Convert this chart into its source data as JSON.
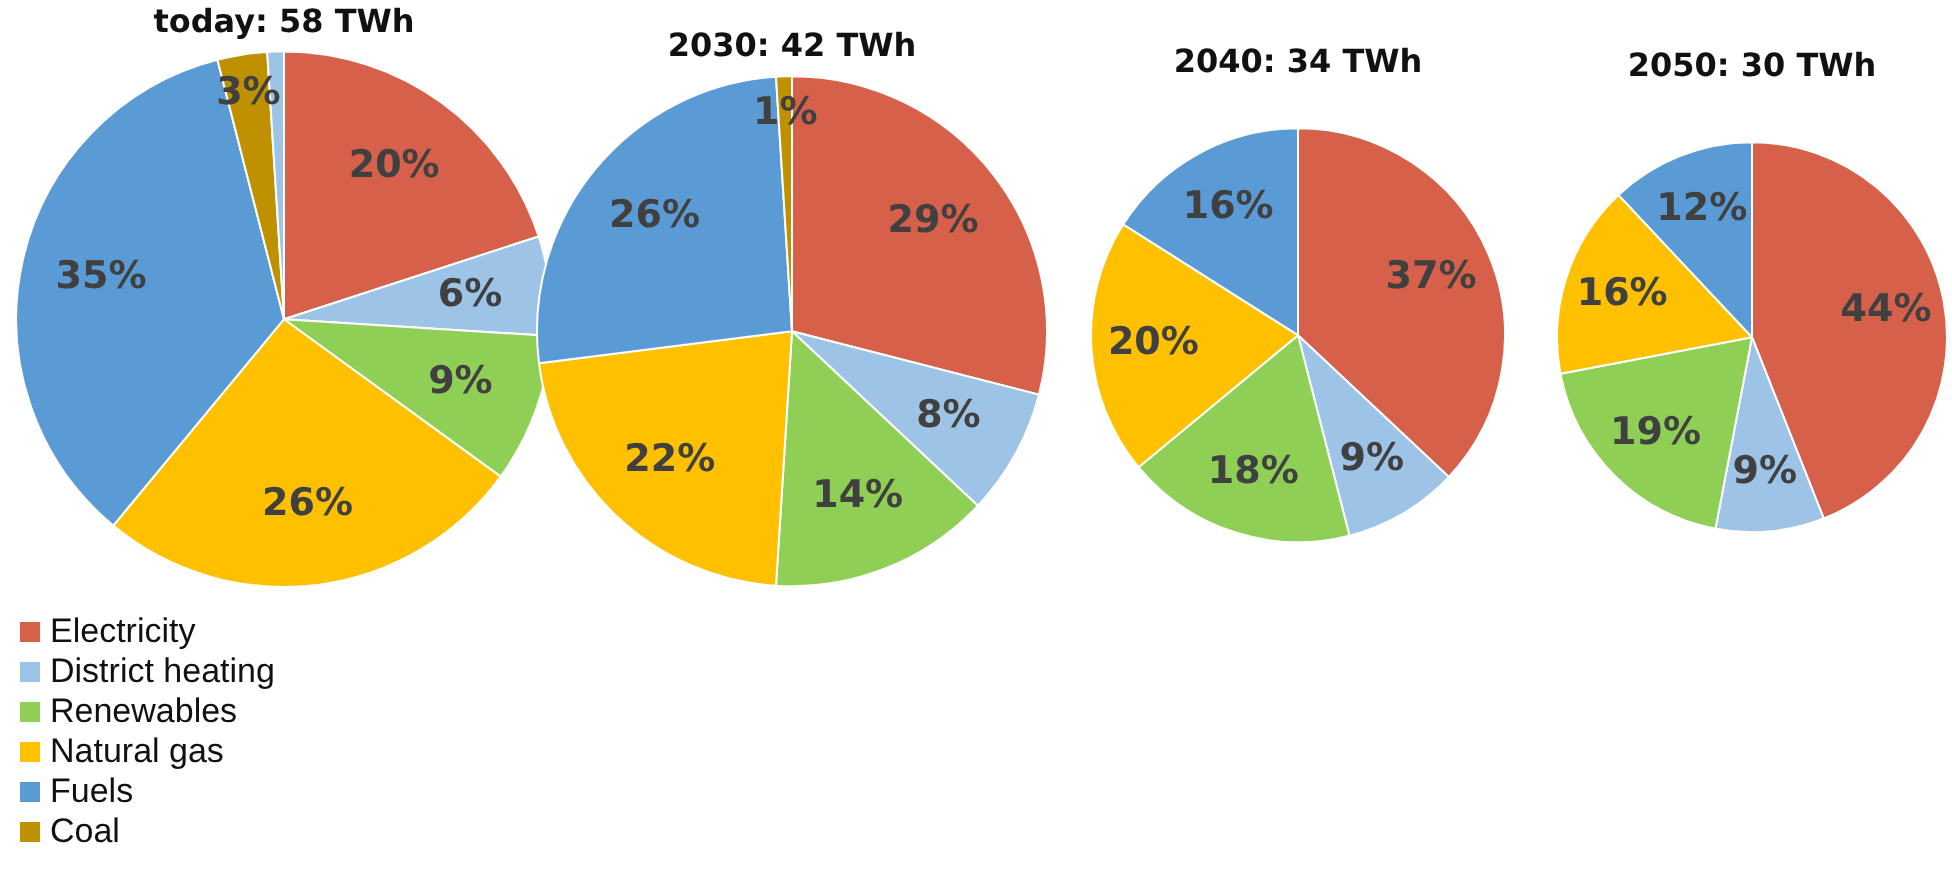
{
  "chart_data": [
    {
      "type": "pie",
      "title": "today: 58 TWh",
      "categories": [
        "Electricity",
        "District heating",
        "Renewables",
        "Natural gas",
        "Fuels",
        "Coal",
        null
      ],
      "values": [
        20,
        6,
        9,
        26,
        35,
        3,
        1
      ],
      "value_labels": [
        "20%",
        "6%",
        "9%",
        "26%",
        "35%",
        "3%",
        null
      ],
      "colors": [
        "#d6604a",
        "#9dc3e6",
        "#8fcf55",
        "#ffc000",
        "#5b9bd5",
        "#bf9000",
        "#9dc3e6"
      ],
      "legend": "bottom left"
    },
    {
      "type": "pie",
      "title": "2030: 42 TWh",
      "categories": [
        null,
        null,
        null,
        null,
        null,
        null
      ],
      "values": [
        29,
        8,
        14,
        22,
        26,
        1
      ],
      "value_labels": [
        "29%",
        "8%",
        "14%",
        "22%",
        "26%",
        "1%"
      ],
      "colors": [
        "#d6604a",
        "#9dc3e6",
        "#8fcf55",
        "#ffc000",
        "#5b9bd5",
        "#bf9000"
      ]
    },
    {
      "type": "pie",
      "title": "2040: 34 TWh",
      "categories": [
        null,
        null,
        null,
        null,
        null
      ],
      "values": [
        37,
        9,
        18,
        20,
        16
      ],
      "value_labels": [
        "37%",
        "9%",
        "18%",
        "20%",
        "16%"
      ],
      "colors": [
        "#d6604a",
        "#9dc3e6",
        "#8fcf55",
        "#ffc000",
        "#5b9bd5"
      ]
    },
    {
      "type": "pie",
      "title": "2050: 30 TWh",
      "categories": [
        null,
        null,
        null,
        null,
        null
      ],
      "values": [
        44,
        9,
        19,
        16,
        12
      ],
      "value_labels": [
        "44%",
        "9%",
        "19%",
        "16%",
        "12%"
      ],
      "colors": [
        "#d6604a",
        "#9dc3e6",
        "#8fcf55",
        "#ffc000",
        "#5b9bd5"
      ]
    }
  ]
}
